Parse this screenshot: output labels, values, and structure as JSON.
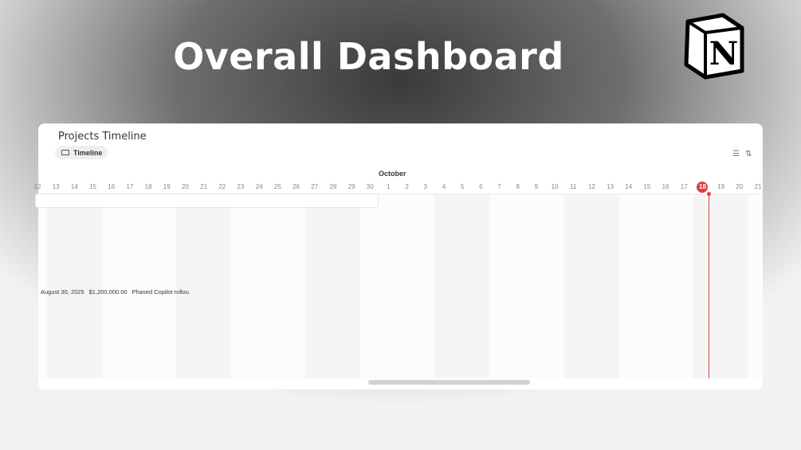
{
  "hero_title": "Overall Dashboard",
  "logo": {
    "letter": "N",
    "name": "Notion"
  },
  "card": {
    "title": "Projects Timeline",
    "view_tab": {
      "label": "Timeline",
      "icon": "timeline-icon"
    },
    "toolbar": [
      {
        "icon": "filter-icon",
        "glyph": "☰"
      },
      {
        "icon": "sort-icon",
        "glyph": "⇅"
      }
    ],
    "month": "October",
    "today": "18",
    "days": [
      {
        "d": "12",
        "w": false
      },
      {
        "d": "13",
        "w": true
      },
      {
        "d": "14",
        "w": true
      },
      {
        "d": "15",
        "w": false
      },
      {
        "d": "16",
        "w": false
      },
      {
        "d": "17",
        "w": false
      },
      {
        "d": "18",
        "w": false
      },
      {
        "d": "19",
        "w": false
      },
      {
        "d": "20",
        "w": true
      },
      {
        "d": "21",
        "w": true
      },
      {
        "d": "22",
        "w": false
      },
      {
        "d": "23",
        "w": false
      },
      {
        "d": "24",
        "w": false
      },
      {
        "d": "25",
        "w": false
      },
      {
        "d": "26",
        "w": false
      },
      {
        "d": "27",
        "w": true
      },
      {
        "d": "28",
        "w": true
      },
      {
        "d": "29",
        "w": false
      },
      {
        "d": "30",
        "w": false
      },
      {
        "d": "1",
        "w": false
      },
      {
        "d": "2",
        "w": false
      },
      {
        "d": "3",
        "w": false
      },
      {
        "d": "4",
        "w": true
      },
      {
        "d": "5",
        "w": true
      },
      {
        "d": "6",
        "w": false
      },
      {
        "d": "7",
        "w": false
      },
      {
        "d": "8",
        "w": false
      },
      {
        "d": "9",
        "w": false
      },
      {
        "d": "10",
        "w": false
      },
      {
        "d": "11",
        "w": true
      },
      {
        "d": "12",
        "w": true
      },
      {
        "d": "13",
        "w": false
      },
      {
        "d": "14",
        "w": false
      },
      {
        "d": "15",
        "w": false
      },
      {
        "d": "16",
        "w": false
      },
      {
        "d": "17",
        "w": false
      },
      {
        "d": "18",
        "w": true,
        "today": true
      },
      {
        "d": "19",
        "w": true
      },
      {
        "d": "20",
        "w": false
      },
      {
        "d": "21",
        "w": false
      }
    ],
    "row": {
      "date": "August 30, 2025",
      "amount": "$1,200,000.00",
      "note": "Phased Copilot rollou"
    },
    "today_color": "#e03e3e"
  }
}
